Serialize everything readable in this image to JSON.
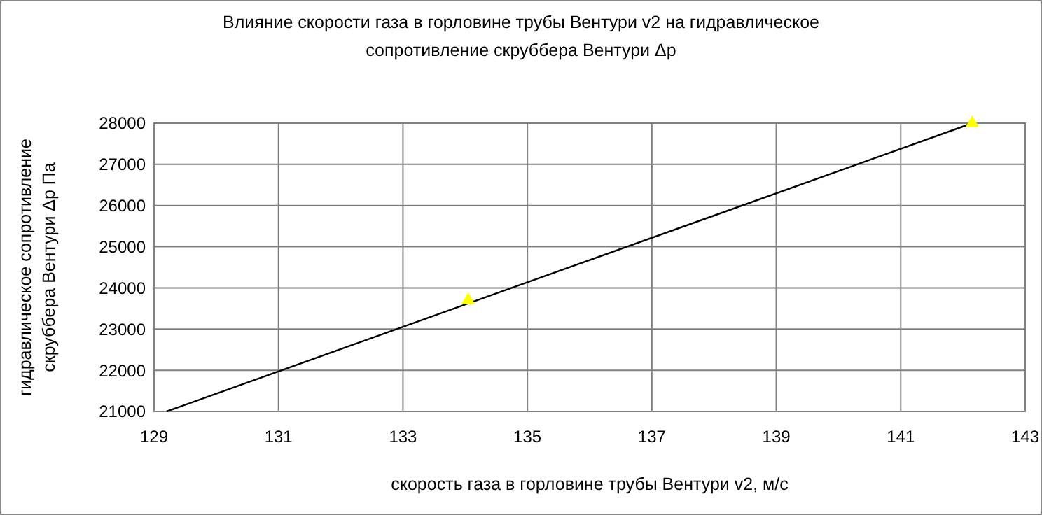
{
  "chart_data": {
    "type": "scatter",
    "title": "Влияние скорости газа в горловине трубы Вентури v2 на гидравлическое сопротивление скруббера Вентури Δр",
    "xlabel": "скорость газа в горловине трубы Вентури v2, м/с",
    "ylabel": "гидравлическое сопротивление скруббера Вентури Δр Па",
    "xlim": [
      129,
      143
    ],
    "xticks": [
      129,
      131,
      133,
      135,
      137,
      139,
      141,
      143
    ],
    "ylim": [
      21000,
      28000
    ],
    "yticks": [
      21000,
      22000,
      23000,
      24000,
      25000,
      26000,
      27000,
      28000
    ],
    "grid": true,
    "series": [
      {
        "color": "#ffff00",
        "marker": "triangle",
        "x": [
          134.05,
          142.15
        ],
        "values": [
          23700,
          28000
        ]
      },
      {
        "type": "line",
        "color": "#000000",
        "marker": "none",
        "line_style": "solid",
        "x": [
          129.2,
          142.15
        ],
        "values": [
          21000,
          28000
        ]
      }
    ]
  }
}
